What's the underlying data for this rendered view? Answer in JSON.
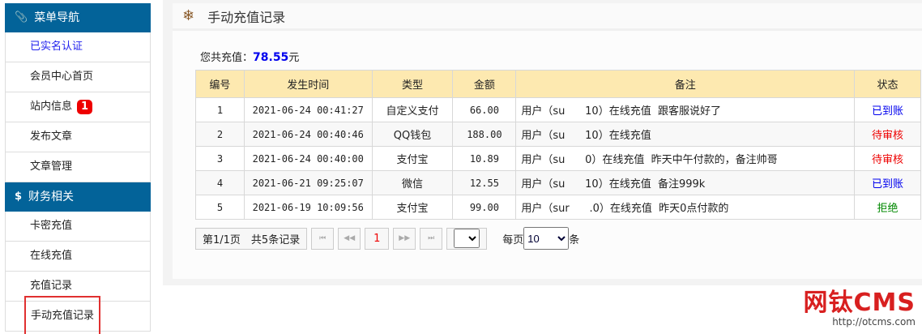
{
  "sidebar": {
    "sections": [
      {
        "title": "菜单导航",
        "icon": "paperclip-icon",
        "items": [
          {
            "label": "已实名认证",
            "active": true
          },
          {
            "label": "会员中心首页"
          },
          {
            "label": "站内信息",
            "badge": "1"
          },
          {
            "label": "发布文章"
          },
          {
            "label": "文章管理"
          }
        ]
      },
      {
        "title": "财务相关",
        "icon": "dollar-icon",
        "items": [
          {
            "label": "卡密充值"
          },
          {
            "label": "在线充值"
          },
          {
            "label": "充值记录"
          },
          {
            "label": "手动充值记录",
            "selected": true
          }
        ]
      }
    ]
  },
  "page": {
    "title": "手动充值记录",
    "total_label": "您共充值：",
    "total_value": "78.55",
    "total_unit": "元"
  },
  "table": {
    "headers": [
      "编号",
      "发生时间",
      "类型",
      "金额",
      "备注",
      "状态"
    ],
    "rows": [
      {
        "id": "1",
        "time": "2021-06-24 00:41:27",
        "type": "自定义支付",
        "amount": "66.00",
        "note": "用户（su      10）在线充值  跟客服说好了",
        "status": "已到账",
        "status_kind": "ok"
      },
      {
        "id": "2",
        "time": "2021-06-24 00:40:46",
        "type": "QQ钱包",
        "amount": "188.00",
        "note": "用户（su      10）在线充值",
        "status": "待审核",
        "status_kind": "wait"
      },
      {
        "id": "3",
        "time": "2021-06-24 00:40:00",
        "type": "支付宝",
        "amount": "10.89",
        "note": "用户（su      0）在线充值  昨天中午付款的，备注帅哥",
        "status": "待审核",
        "status_kind": "wait"
      },
      {
        "id": "4",
        "time": "2021-06-21 09:25:07",
        "type": "微信",
        "amount": "12.55",
        "note": "用户（su      10）在线充值  备注999k",
        "status": "已到账",
        "status_kind": "ok"
      },
      {
        "id": "5",
        "time": "2021-06-19 10:09:56",
        "type": "支付宝",
        "amount": "99.00",
        "note": "用户（sur      .0）在线充值  昨天0点付款的",
        "status": "拒绝",
        "status_kind": "rej"
      }
    ]
  },
  "pager": {
    "info": "第1/1页　共5条记录",
    "current": "1",
    "per_page_label": "每页",
    "per_page_value": "10",
    "per_page_unit": "条"
  },
  "watermark": {
    "logo": "网钛CMS",
    "url": "http://otcms.com"
  },
  "colors": {
    "sidebar_header": "#036399",
    "table_header": "#fde9b0",
    "status_ok": "#0000ee",
    "status_wait": "#ee0000",
    "status_reject": "#008800"
  }
}
